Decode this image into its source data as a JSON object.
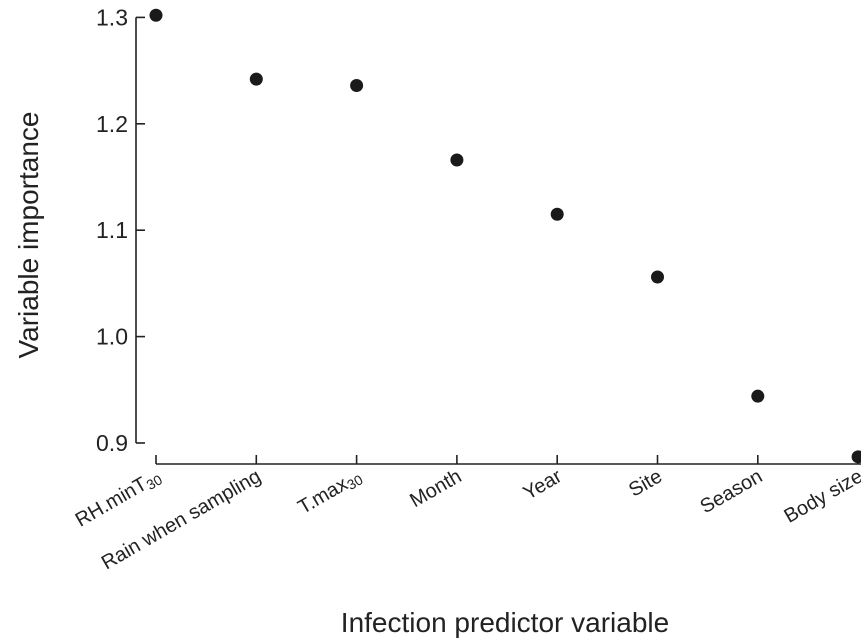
{
  "chart_data": {
    "type": "scatter",
    "xlabel": "Infection predictor variable",
    "ylabel": "Variable importance",
    "categories": [
      {
        "label": "RH.minT",
        "sub": "30"
      },
      {
        "label": "Rain when sampling",
        "sub": ""
      },
      {
        "label": "T.max",
        "sub": "30"
      },
      {
        "label": "Month",
        "sub": ""
      },
      {
        "label": "Year",
        "sub": ""
      },
      {
        "label": "Site",
        "sub": ""
      },
      {
        "label": "Season",
        "sub": ""
      },
      {
        "label": "Body size",
        "sub": ""
      }
    ],
    "values": [
      1.302,
      1.242,
      1.236,
      1.166,
      1.115,
      1.056,
      0.944,
      0.887
    ],
    "ylim": [
      0.89,
      1.305
    ],
    "yticks": [
      "0.9",
      "1.0",
      "1.1",
      "1.2",
      "1.3"
    ],
    "yticks_values": [
      0.9,
      1.0,
      1.1,
      1.2,
      1.3
    ],
    "grid": false,
    "legend": "none",
    "marker_color": "#1a1a1a"
  }
}
